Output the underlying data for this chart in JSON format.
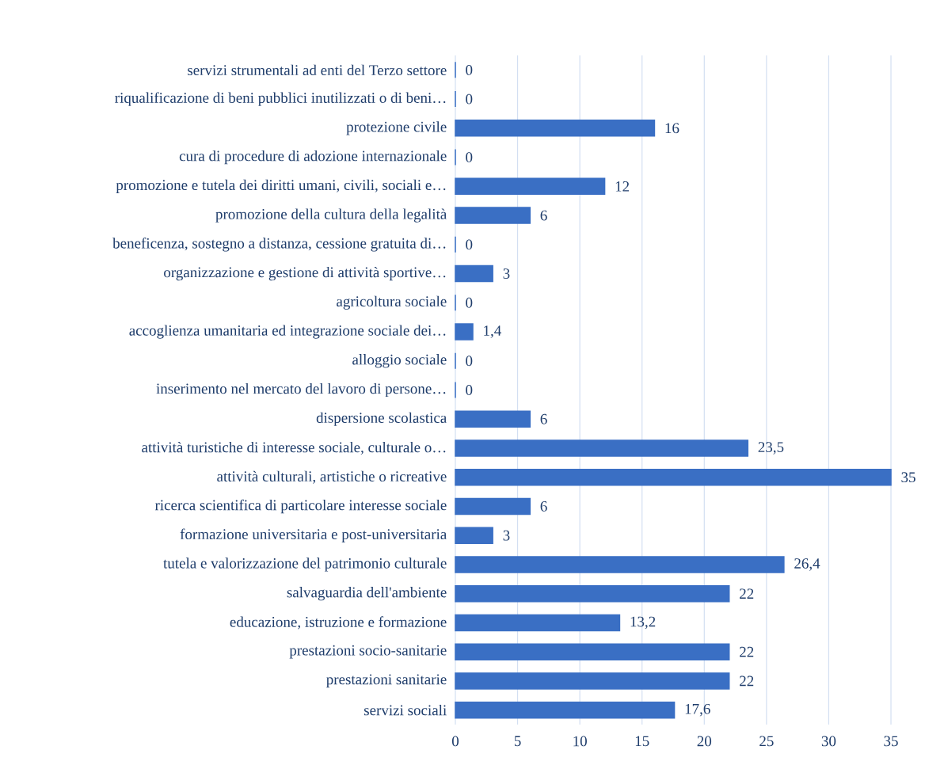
{
  "chart_data": {
    "type": "bar",
    "orientation": "horizontal",
    "categories": [
      "servizi strumentali ad enti del Terzo settore",
      "riqualificazione di beni pubblici inutilizzati o di beni…",
      "protezione civile",
      "cura di procedure di adozione internazionale",
      "promozione e tutela dei diritti umani, civili, sociali e…",
      "promozione della cultura della legalità",
      "beneficenza, sostegno a distanza, cessione gratuita di…",
      "organizzazione e gestione di attività sportive…",
      "agricoltura sociale",
      "accoglienza umanitaria ed integrazione sociale dei…",
      "alloggio sociale",
      "inserimento nel mercato del lavoro di persone…",
      "dispersione scolastica",
      "attività turistiche di interesse sociale, culturale o…",
      "attività culturali, artistiche o ricreative",
      "ricerca scientifica di particolare interesse sociale",
      "formazione universitaria e post-universitaria",
      "tutela e valorizzazione del patrimonio culturale",
      "salvaguardia  dell'ambiente",
      "educazione, istruzione e formazione",
      "prestazioni socio-sanitarie",
      "prestazioni sanitarie",
      "servizi sociali"
    ],
    "values": [
      0,
      0,
      16,
      0,
      12,
      6,
      0,
      3,
      0,
      1.4,
      0,
      0,
      6,
      23.5,
      35,
      6,
      3,
      26.4,
      22,
      13.2,
      22,
      22,
      17.6
    ],
    "value_labels": [
      "0",
      "0",
      "16",
      "0",
      "12",
      "6",
      "0",
      "3",
      "0",
      "1,4",
      "0",
      "0",
      "6",
      "23,5",
      "35",
      "6",
      "3",
      "26,4",
      "22",
      "13,2",
      "22",
      "22",
      "17,6"
    ],
    "color": "#3a6fc4",
    "xlim": [
      0,
      35
    ],
    "xticks": [
      0,
      5,
      10,
      15,
      20,
      25,
      30,
      35
    ],
    "grid": "x"
  }
}
